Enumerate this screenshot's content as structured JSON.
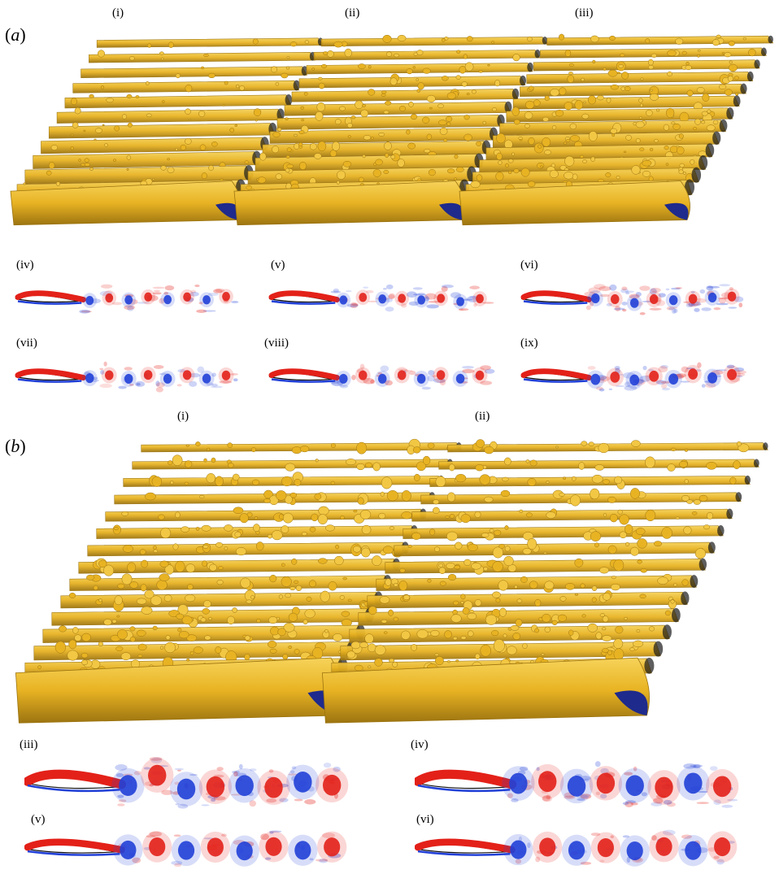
{
  "figure": {
    "part_a": {
      "label_open": "(",
      "label_letter": "a",
      "label_close": ")",
      "views3d": [
        "(i)",
        "(ii)",
        "(iii)"
      ],
      "slices": [
        "(iv)",
        "(v)",
        "(vi)",
        "(vii)",
        "(viii)",
        "(ix)"
      ]
    },
    "part_b": {
      "label_open": "(",
      "label_letter": "b",
      "label_close": ")",
      "views3d": [
        "(i)",
        "(ii)"
      ],
      "slices": [
        "(iii)",
        "(iv)",
        "(v)",
        "(vi)"
      ]
    },
    "colors": {
      "isosurface": "#E8B323",
      "isosurface_dark": "#9C7410",
      "wing_underside": "#1E2A8C",
      "vorticity_positive": "#E32119",
      "vorticity_negative": "#2140D8"
    }
  }
}
